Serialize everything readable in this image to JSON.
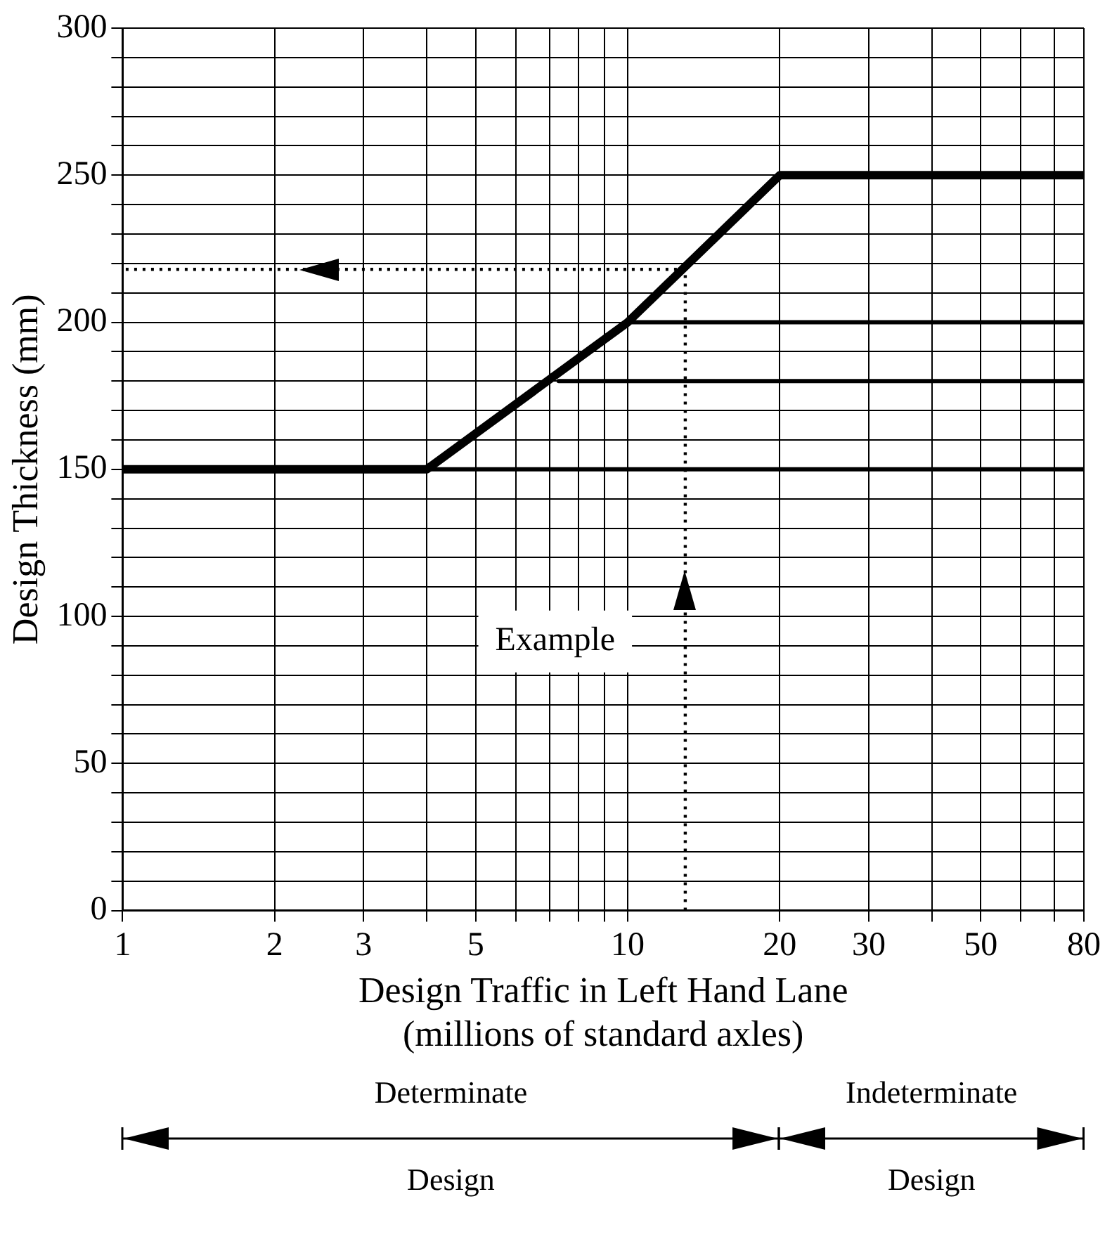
{
  "chart_data": {
    "type": "line",
    "xlabel": "Design Traffic in Left Hand Lane\n(millions of standard axles)",
    "ylabel": "Design Thickness (mm)",
    "log": "x",
    "grid": true,
    "legend": false,
    "marker": "none",
    "xlim": [
      1,
      80
    ],
    "ylim": [
      0,
      300
    ],
    "xticks": [
      1,
      2,
      3,
      {
        "value": 4,
        "label": null
      },
      5,
      {
        "value": 6,
        "label": null
      },
      {
        "value": 7,
        "label": null
      },
      {
        "value": 8,
        "label": null
      },
      {
        "value": 9,
        "label": null
      },
      10,
      20,
      30,
      {
        "value": 40,
        "label": null
      },
      50,
      {
        "value": 60,
        "label": null
      },
      {
        "value": 70,
        "label": null
      },
      80
    ],
    "yticks": [
      0,
      {
        "value": 10,
        "label": null
      },
      {
        "value": 20,
        "label": null
      },
      {
        "value": 30,
        "label": null
      },
      {
        "value": 40,
        "label": null
      },
      50,
      {
        "value": 60,
        "label": null
      },
      {
        "value": 70,
        "label": null
      },
      {
        "value": 80,
        "label": null
      },
      {
        "value": 90,
        "label": null
      },
      100,
      {
        "value": 110,
        "label": null
      },
      {
        "value": 120,
        "label": null
      },
      {
        "value": 130,
        "label": null
      },
      {
        "value": 140,
        "label": null
      },
      150,
      {
        "value": 160,
        "label": null
      },
      {
        "value": 170,
        "label": null
      },
      {
        "value": 180,
        "label": null
      },
      {
        "value": 190,
        "label": null
      },
      200,
      {
        "value": 210,
        "label": null
      },
      {
        "value": 220,
        "label": null
      },
      {
        "value": 230,
        "label": null
      },
      {
        "value": 240,
        "label": null
      },
      250,
      {
        "value": 260,
        "label": null
      },
      {
        "value": 270,
        "label": null
      },
      {
        "value": 280,
        "label": null
      },
      {
        "value": 290,
        "label": null
      },
      300
    ],
    "series": [
      {
        "color": "#000000",
        "x": [
          1,
          4,
          10,
          20,
          80
        ],
        "values": [
          150,
          150,
          200,
          250,
          250
        ],
        "line_style": "solid"
      },
      {
        "color": "#000000",
        "x": [
          10,
          80
        ],
        "values": [
          200,
          200
        ],
        "line_style": "solid"
      },
      {
        "color": "#000000",
        "x": [
          7.3,
          80
        ],
        "values": [
          180,
          180
        ],
        "line_style": "solid"
      },
      {
        "color": "#000000",
        "x": [
          4,
          80
        ],
        "values": [
          150,
          150
        ],
        "line_style": "solid"
      },
      {
        "color": "#000000",
        "x": [
          13,
          13
        ],
        "values": [
          0,
          218
        ],
        "line_style": "dotted"
      },
      {
        "color": "#000000",
        "x": [
          13,
          1
        ],
        "values": [
          218,
          218
        ],
        "line_style": "dotted"
      }
    ],
    "annotations": [
      "Example",
      "Determinate\nDesign",
      "Indeterminate\nDesign"
    ]
  }
}
